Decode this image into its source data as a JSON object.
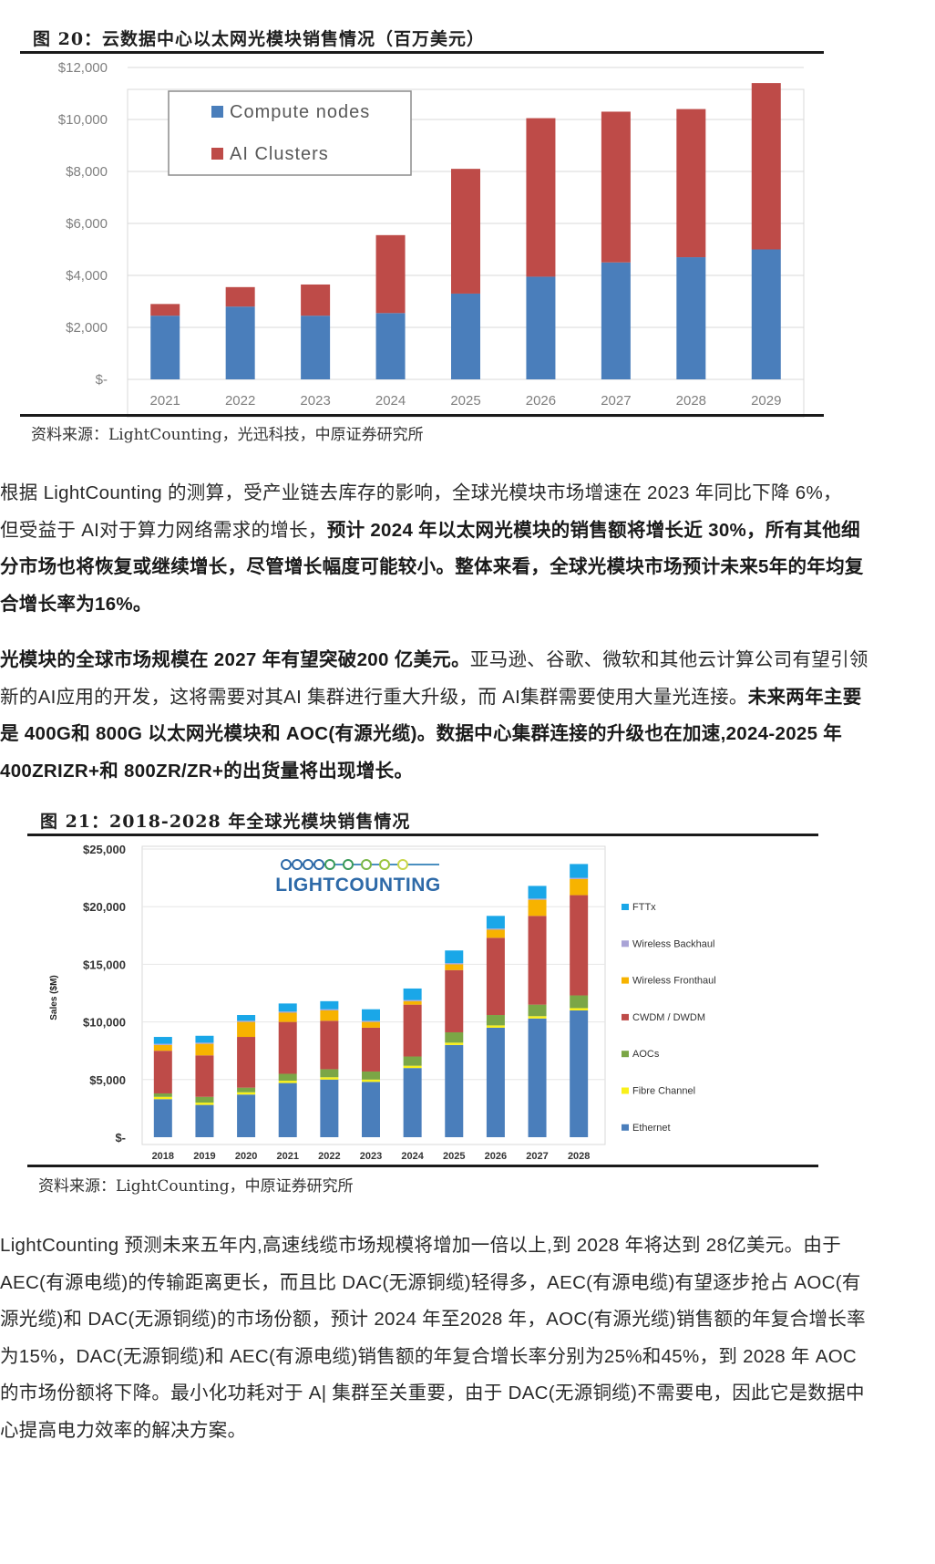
{
  "figure1": {
    "title": "图 20：云数据中心以太网光模块销售情况（百万美元）",
    "source": "资料来源：LightCounting，光迅科技，中原证券研究所"
  },
  "figure2": {
    "title": "图 21：2018-2028 年全球光模块销售情况",
    "source": "资料来源：LightCounting，中原证券研究所",
    "logo_text": "LIGHTCOUNTING"
  },
  "paragraph1": {
    "line1": "根据 LightCounting 的测算，受产业链去库存的影响，全球光模块市场增速在 2023 年同比下降 6%，",
    "line2_normal": "但受益于 AI对于算力网络需求的增长，",
    "line2_bold": "预计 2024 年以太网光模块的销售额将增长近 30%，所有其他细",
    "line3_bold": "分市场也将恢复或继续增长，尽管增长幅度可能较小。整体来看，全球光模块市场预计未来5年的年均复",
    "line4_bold": "合增长率为16%。"
  },
  "paragraph2": {
    "line1_bold": "光模块的全球市场规模在 2027 年有望突破200 亿美元。",
    "line1_normal": "亚马逊、谷歌、微软和其他云计算公司有望引领",
    "line2_normal": "新的AI应用的开发，这将需要对其AI 集群进行重大升级，而 AI集群需要使用大量光连接。",
    "line2_bold": "未来两年主要",
    "line3_bold": "是 400G和 800G 以太网光模块和 AOC(有源光缆)。数据中心集群连接的升级也在加速,2024-2025 年",
    "line4_bold": "400ZRIZR+和 800ZR/ZR+的出货量将出现增长。"
  },
  "paragraph3": {
    "line1": "LightCounting 预测未来五年内,高速线缆市场规模将增加一倍以上,到 2028 年将达到 28亿美元。由于",
    "line2": "AEC(有源电缆)的传输距离更长，而且比 DAC(无源铜缆)轻得多，AEC(有源电缆)有望逐步抢占 AOC(有",
    "line3": "源光缆)和 DAC(无源铜缆)的市场份额，预计 2024 年至2028 年，AOC(有源光缆)销售额的年复合增长率",
    "line4": "为15%，DAC(无源铜缆)和 AEC(有源电缆)销售额的年复合增长率分别为25%和45%，到 2028 年 AOC",
    "line5": "的市场份额将下降。最小化功耗对于 A| 集群至关重要，由于 DAC(无源铜缆)不需要电，因此它是数据中",
    "line6": "心提高电力效率的解决方案。"
  },
  "colors": {
    "blue": "#4a7ebb",
    "red": "#be4b48",
    "green": "#7ba646",
    "yellow_orange": "#f7b300",
    "yellow": "#f9f01a",
    "cyan": "#1aa7e8",
    "lavender": "#a9a3d6"
  },
  "chart_data": [
    {
      "type": "bar",
      "stacked": true,
      "categories": [
        "2021",
        "2022",
        "2023",
        "2024",
        "2025",
        "2026",
        "2027",
        "2028",
        "2029"
      ],
      "series": [
        {
          "name": "Compute nodes",
          "color": "#4a7ebb",
          "values": [
            2450,
            2800,
            2450,
            2550,
            3300,
            3950,
            4500,
            4700,
            5000
          ]
        },
        {
          "name": "AI Clusters",
          "color": "#be4b48",
          "values": [
            450,
            750,
            1200,
            3000,
            4800,
            6100,
            5800,
            5700,
            6400
          ]
        }
      ],
      "yticks": [
        "$-",
        "$2,000",
        "$4,000",
        "$6,000",
        "$8,000",
        "$10,000",
        "$12,000"
      ],
      "ylim": [
        0,
        12000
      ],
      "grid": true,
      "legend_position": "top-left"
    },
    {
      "type": "bar",
      "stacked": true,
      "categories": [
        "2018",
        "2019",
        "2020",
        "2021",
        "2022",
        "2023",
        "2024",
        "2025",
        "2026",
        "2027",
        "2028"
      ],
      "ylabel": "Sales ($M)",
      "yticks": [
        "$-",
        "$5,000",
        "$10,000",
        "$15,000",
        "$20,000",
        "$25,000"
      ],
      "ylim": [
        0,
        25000
      ],
      "grid": true,
      "legend_position": "right",
      "series": [
        {
          "name": "Ethernet",
          "color": "#4a7ebb",
          "values": [
            3300,
            2800,
            3700,
            4700,
            5000,
            4800,
            6000,
            8000,
            9500,
            10300,
            11000
          ]
        },
        {
          "name": "Fibre Channel",
          "color": "#f9f01a",
          "values": [
            200,
            200,
            200,
            200,
            200,
            200,
            200,
            200,
            200,
            200,
            200
          ]
        },
        {
          "name": "AOCs",
          "color": "#7ba646",
          "values": [
            300,
            500,
            400,
            600,
            700,
            700,
            800,
            900,
            900,
            1000,
            1100
          ]
        },
        {
          "name": "CWDM / DWDM",
          "color": "#be4b48",
          "values": [
            3700,
            3600,
            4400,
            4500,
            4200,
            3800,
            4500,
            5400,
            6700,
            7700,
            8700
          ]
        },
        {
          "name": "Wireless Fronthaul",
          "color": "#f7b300",
          "values": [
            500,
            1000,
            1300,
            800,
            900,
            500,
            300,
            500,
            700,
            1400,
            1400
          ]
        },
        {
          "name": "Wireless Backhaul",
          "color": "#a9a3d6",
          "values": [
            100,
            100,
            100,
            100,
            100,
            100,
            100,
            100,
            100,
            100,
            100
          ]
        },
        {
          "name": "FTTx",
          "color": "#1aa7e8",
          "values": [
            600,
            600,
            500,
            700,
            700,
            1000,
            1000,
            1100,
            1100,
            1100,
            1200
          ]
        }
      ]
    }
  ]
}
